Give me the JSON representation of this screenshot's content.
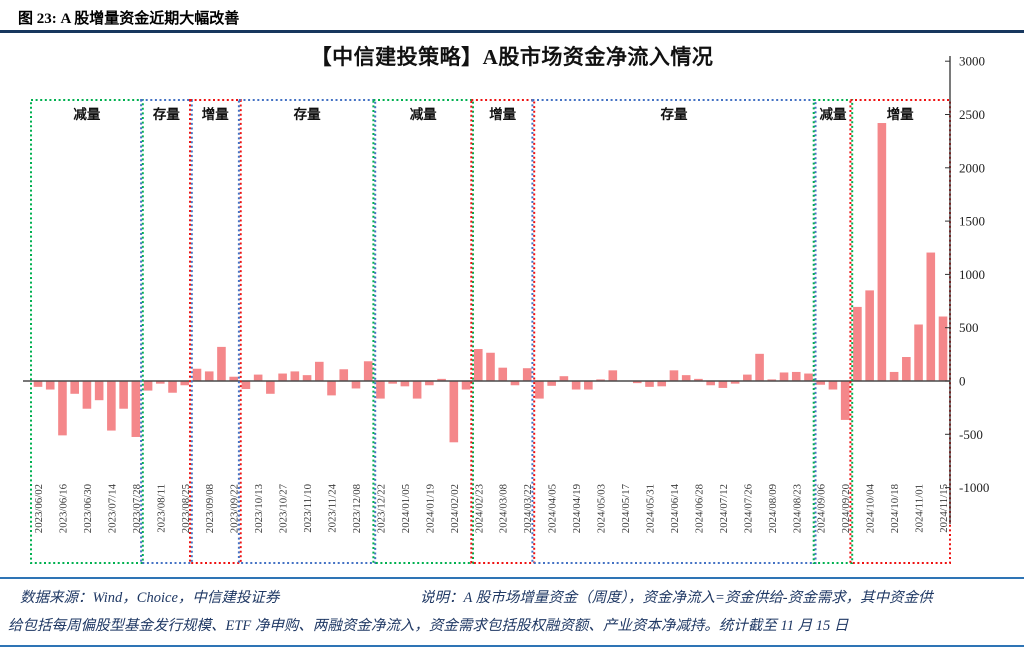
{
  "header": {
    "caption": "图 23: A 股增量资金近期大幅改善"
  },
  "chart": {
    "title": "【中信建投策略】A股市场资金净流入情况"
  },
  "footer": {
    "source": "数据来源：Wind，Choice，中信建投证券",
    "note_line1": "说明：A 股市场增量资金（周度），资金净流入=资金供给-资金需求，其中资金供",
    "note_line2": "给包括每周偏股型基金发行规模、ETF 净申购、两融资金净流入，资金需求包括股权融资额、产业资本净减持。统计截至 11 月 15 日"
  },
  "colors": {
    "header_rule": "#17375E",
    "footer_rule": "#2E74B5",
    "footer_text": "#1F3864",
    "bar": "#F4878A",
    "region_green": "#00B050",
    "region_blue": "#4472C4",
    "region_red": "#EE1111",
    "axis": "#333333"
  },
  "chart_data": {
    "type": "bar",
    "title": "【中信建投策略】A股市场资金净流入情况",
    "ylabel": "",
    "xlabel": "",
    "ylim": [
      -1000,
      3000
    ],
    "y_ticks": [
      3000,
      2500,
      2000,
      1500,
      1000,
      500,
      0,
      -500,
      -1000
    ],
    "axis_side": "right",
    "grid": false,
    "legend": "none",
    "bar_color": "#F4878A",
    "frequency": "weekly, every 2nd bar labeled",
    "label_every_n_bars": 2,
    "categories": [
      "2023/06/02",
      "2023/06/16",
      "2023/06/30",
      "2023/07/14",
      "2023/07/28",
      "2023/08/11",
      "2023/08/25",
      "2023/09/08",
      "2023/09/22",
      "2023/10/13",
      "2023/10/27",
      "2023/11/10",
      "2023/11/24",
      "2023/12/08",
      "2023/12/22",
      "2024/01/05",
      "2024/01/19",
      "2024/02/02",
      "2024/02/23",
      "2024/03/08",
      "2024/03/22",
      "2024/04/05",
      "2024/04/19",
      "2024/05/03",
      "2024/05/17",
      "2024/05/31",
      "2024/06/14",
      "2024/06/28",
      "2024/07/12",
      "2024/07/26",
      "2024/08/09",
      "2024/08/23",
      "2024/09/06",
      "2024/09/20",
      "2024/10/04",
      "2024/10/18",
      "2024/11/01",
      "2024/11/15"
    ],
    "values": [
      -55,
      -80,
      -510,
      -120,
      -260,
      -180,
      -465,
      -260,
      -525,
      -90,
      -25,
      -110,
      -40,
      115,
      90,
      320,
      40,
      -75,
      60,
      -120,
      70,
      90,
      55,
      180,
      -135,
      110,
      -70,
      185,
      -165,
      -25,
      -50,
      -165,
      -40,
      20,
      -575,
      -80,
      300,
      265,
      125,
      -40,
      120,
      -165,
      -45,
      45,
      -80,
      -80,
      15,
      100,
      5,
      -20,
      -55,
      -50,
      100,
      55,
      20,
      -40,
      -65,
      -25,
      60,
      255,
      15,
      80,
      85,
      70,
      -35,
      -80,
      -365,
      695,
      850,
      2420,
      85,
      225,
      530,
      1205,
      605
    ],
    "regions": [
      {
        "label": "减量",
        "color": "#00B050",
        "from_bar": 0,
        "to_bar": 8
      },
      {
        "label": "存量",
        "color": "#4472C4",
        "from_bar": 9,
        "to_bar": 12
      },
      {
        "label": "增量",
        "color": "#EE1111",
        "from_bar": 13,
        "to_bar": 16
      },
      {
        "label": "存量",
        "color": "#4472C4",
        "from_bar": 17,
        "to_bar": 27
      },
      {
        "label": "减量",
        "color": "#00B050",
        "from_bar": 28,
        "to_bar": 35
      },
      {
        "label": "增量",
        "color": "#EE1111",
        "from_bar": 36,
        "to_bar": 40
      },
      {
        "label": "存量",
        "color": "#4472C4",
        "from_bar": 41,
        "to_bar": 63
      },
      {
        "label": "减量",
        "color": "#00B050",
        "from_bar": 64,
        "to_bar": 66
      },
      {
        "label": "增量",
        "color": "#EE1111",
        "from_bar": 67,
        "to_bar": 74
      }
    ]
  }
}
